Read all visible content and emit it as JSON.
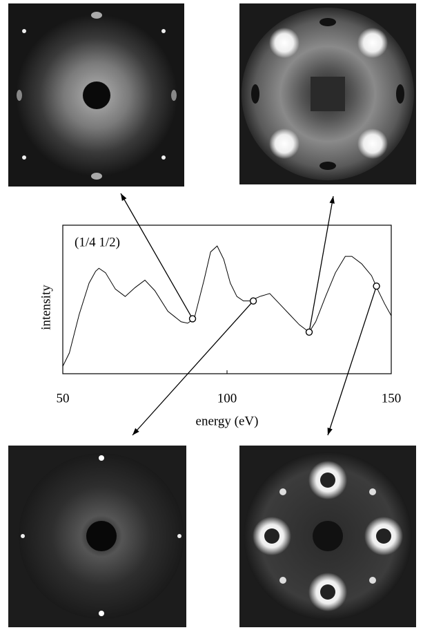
{
  "chart_data": {
    "type": "line",
    "annotation": "(1/4 1/2)",
    "xlabel": "energy (eV)",
    "ylabel": "intensity",
    "x": [
      50,
      52,
      55,
      58,
      60,
      61,
      63,
      66,
      69,
      72,
      75,
      78,
      82,
      86,
      88,
      90,
      93,
      95,
      97,
      99,
      101,
      103,
      105,
      107,
      110,
      113,
      116,
      119,
      122,
      125,
      127,
      130,
      133,
      136,
      138,
      141,
      144,
      146,
      148,
      150
    ],
    "series": [
      {
        "color": "#000000",
        "values": [
          5,
          14,
          40,
          61,
          69,
          71,
          68,
          57,
          52,
          58,
          63,
          56,
          42,
          35,
          34,
          37,
          63,
          82,
          86,
          77,
          61,
          52,
          49,
          49,
          52,
          54,
          47,
          40,
          33,
          28,
          35,
          52,
          68,
          79,
          79,
          74,
          66,
          56,
          47,
          39
        ]
      }
    ],
    "markers": {
      "x": [
        89.5,
        108,
        125,
        145.5
      ],
      "values": [
        37,
        49,
        28,
        59
      ]
    },
    "xlim": [
      50,
      150
    ],
    "ylim": [
      0,
      100
    ],
    "xticks": [
      50,
      100,
      150
    ]
  }
}
